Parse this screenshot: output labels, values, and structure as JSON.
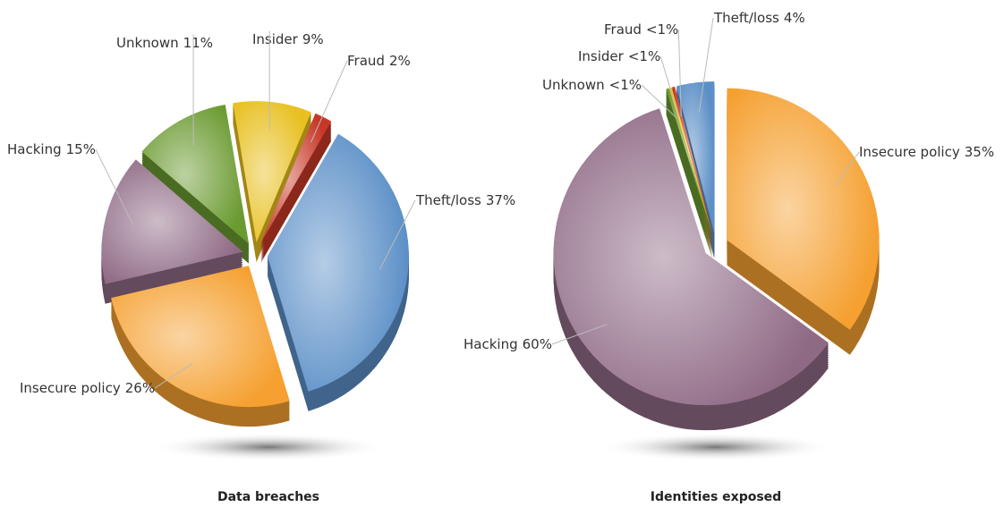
{
  "chart_data": [
    {
      "type": "pie",
      "title": "Data breaches",
      "categories": [
        "Theft/loss",
        "Insecure policy",
        "Hacking",
        "Unknown",
        "Insider",
        "Fraud"
      ],
      "values": [
        37,
        26,
        15,
        11,
        9,
        2
      ],
      "value_labels": [
        "37%",
        "26%",
        "15%",
        "11%",
        "9%",
        "2%"
      ],
      "colors": [
        "#5b8fc7",
        "#f5a030",
        "#8f6a85",
        "#6a9a30",
        "#e8c020",
        "#c83828"
      ]
    },
    {
      "type": "pie",
      "title": "Identities exposed",
      "categories": [
        "Insecure policy",
        "Hacking",
        "Unknown",
        "Insider",
        "Fraud",
        "Theft/loss"
      ],
      "values": [
        35,
        60,
        0.3,
        0.3,
        0.3,
        4
      ],
      "value_labels": [
        "35%",
        "60%",
        "<1%",
        "<1%",
        "<1%",
        "4%"
      ],
      "colors": [
        "#f5a030",
        "#8f6a85",
        "#6a9a30",
        "#e8c020",
        "#c83828",
        "#5b8fc7"
      ]
    }
  ]
}
